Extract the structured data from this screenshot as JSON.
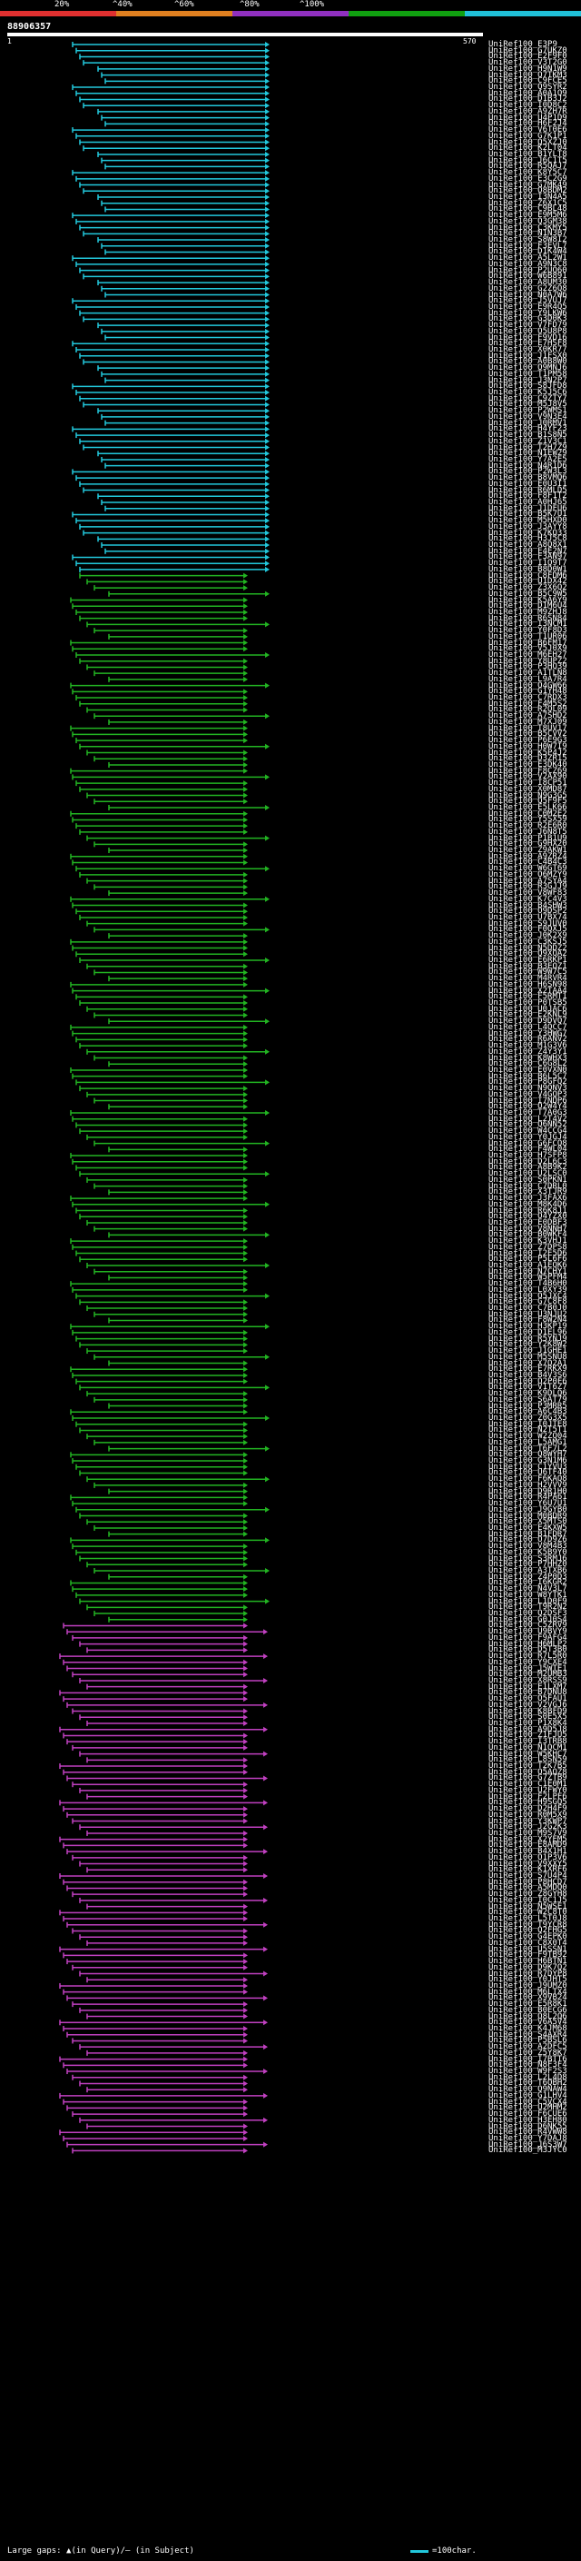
{
  "legend": {
    "labels": [
      "20%",
      "^40%",
      "^60%",
      "^80%",
      "^100%"
    ],
    "colors": [
      "#e03030",
      "#e08020",
      "#9030c0",
      "#10a010",
      "#20c0d8"
    ]
  },
  "query": {
    "id": "88906357",
    "start": "1",
    "end": "570"
  },
  "color_map": {
    "c": "#22c8dc",
    "g": "#22b422",
    "m": "#c040c0"
  },
  "footer": {
    "text": "Large gaps: ▲(in Query)/– (in Subject)",
    "scale_label": "=100char."
  },
  "hit_rows": "c:2:1-E3P9:1-G7UKZ0:1-E2F9F0:1-V3T2G0:1-H9N1W9:1-Q7TKM3:1-C9FCE5:1-Q9SYR2:1-A0A1Q9:1-D1B3J2:1-I0D8C2:1-A9ZH7R:1-U4P1D9:1-H6F2J4:1-V6T0E6:1-G7K1P1:1-Q5XZJ0:1-K2LT04:1-B1YLT8:1-J6C1T5:1-R5QAJ7:1-K8Y5C7:1-E3C2G9:1-G7MK49:1-O8BDM2:1-I3N4A5:1-Z6X1C5:1-C9BL48:1-E9M5M6:1-Q3GM38:1-C3KMY5:1-N1N3B7:1-S8W8I2:1-F3EVL7:1-D1K4W4:1-A5L2W1:1-A9N3C8:1-P2UQ60:1-W6B891:1-A8UM30:1-G2Z6Q8:1-N0A7W6:1-J5VUJ7:1-E9R4Q5:1-Y9LKW6:1-G3D0K3:1-V7FD79:1-O5U8P8:1-F9VD16:1-E7HSF8:1-X0KR77:1-J1FSX0:1-A0B8W0:1-O9MNJ6:1-T1PM58:1-J3N2P7:1-S8JFD8:1-K5J5C6:1-C9ZTY7:1-M5J8V5:1-P2WMS1:1-V9N3E4:1-J0RMV1:1-H4YF23:1-B1S8N5:1-Z1V3C1:1-T2H7Z9:1-N1EW29:1-Y7A2E5:1-N4R1D6:1-P2W3L3:1-B8VMQ6:1-E0U3I1:1-R6MLD5:1-F8F1T2:1-A0HJ65:1-J1DFU6:1-B5K7U1:1-M5HXD0:1-J3AYY8:1-K7KQ33:1-H3J5C8:1-A8Q8X1:1-E4E2N7:1-F3AN97:1-I1Q9T7:1-B8D0W1|g:2:1-C8FDM6:1-U1DX42:1-Z3X6Q2:1-B5C9W5:1-K5A6Y9:1-D1M6U4:1-M9ZHJ8:1-R6SN84:1-I3NCM1:1-Y0F8D3:1-T1UR06:1-B6FM17:1-V5J0X9:1-M6EH27:1-Y8UPZ2:1-P3HQ39:1-A1TLN8:1-L9A7R4:1-O4GW66:1-G1YH48:1-C7RDX3:1-F4M5S2:1-R2QL09:1-A7SHD2:1-M7XJ09:1-T8UV17:1-B5CVV2:1-P6E9G3:1-H0W7I9:1-K5P4J2:1-D3ZR15:1-E3DK40:1-F8CZ69:1-V2AX90:1-I8CP51:1-X0MD87:1-N9G3G5:1-Q5F9F5:1-E5LK66:1-C0M2E2:1-Y5SX59:1-R2E6R0:1-J6N8T5:1-P1B1U9:1-G9HX20:1-Z9AKW1:1-A9ZRZ4:1-C4B4C3:1-W6GT69:1-O6MZY9:1-A7SYA4:1-R3GJJ9:1-V8WF83:1-K7C4V3:1-B4SHW3:1-O9DSP2:1-U7BX74:1-S9JUV0:1-F0QXJ5:1-J0K2X9:1-C3KSJ5:1-N5DDZ2:1-Q9XQA2:1-E6RKP1:1-B3EQZ1:1-W9W7C5:1-M4RVR4:1-H6SN98:1-X2TAA4:1-F5RMT1:1-P0TSB5:1-U0JAC6:1-E2KNL9:1-D9DVQ7:1-L4QCC7:1-Y3HWG7:1-R6ANV2:1-M1G3V6:1-Z4Y3Y1:1-K8WHX3:1-C6G8L2:1-E0VXN0:1-B6L5C7:1-P8GFQ2:1-N9QNV3:1-V4GQP3:1-I7NDP6:1-O2W4Y4:1-T7A0G3:1-L2T4V2:1-Q6NN52:1-W4CCG4:1-Y0JGJ4:1-G6FCQ8:1-F4WL04:1-H7SFP8:1-D2L6C3:1-A8B9K2:1-U2LSC0:1-S0PKN1:1-C7DRL0:1-X3TJR9:1-J3FAX6:1-M8K4D6:1-R6K8J1:1-O4YZX0:1-E0DBF3:1-V8NNH7:1-B0WKF4:1-K3VHJ1:1-Z7DPS8:1-I2E5D6:1-P5L6F6:1-A1EQK6:1-N7CHY1:1-W5PFM4:1-T4B6H0:1-L0XY39:1-Q5JXC4:1-G7C8F8:1-C7B0J0:1-U3NJU2:1-F8W2N4:1-H3KP19:1-D1EL96:1-R5YNJ9:1-Y2K8W2:1-J1GHE1:1-M5SNU8:1-X7Q2A1:1-E7RKX9:1-B4V3S6:1-O2P0F6:1-V1T6Z7:1-K9DLQ6:1-S6AT79:1-P3MRR5:1-A6C4B3:1-Z0G3X5:1-I0JTE8:1-N2T5T1:1-W2ZQ04:1-L5AMG1:1-T6F7L2:1-Q8WYH7:1-G3N1M6:1-C1YVU3:1-U6TF40:1-F6KAQ8:1-H2VVV9:1-D9R1H0:1-R4PA61:1-Y6U7U1:1-J9GYB0:1-M0BDR9:1-X5MTS0:1-E4KXW5:1-B1FDR7:1-O7D9Z6:1-V8M4B3:1-K5B9Y0:1-S3RMJ6:1-P7HHZ0:1-A3TXB6:1-Z4P0D3:1-I6KGR2:1-N4V3L7:1-W8YTK1:1-L1D0F9:1-T9R2N2:1-Q2DSF3:1-G0J0S4|m:2:1-C5ZRV9:1-U9BVY9:1-F9AFG4:1-H6MLP2:1-D5T3B0:1-R7L5R0:1-Y9CXE4:1-J5WTE1:1-M2UMB3:1-X8RSS9:1-E1LXM7:1-B7DNU8:1-O5FAU1:1-V2VGJ6:1-K8BFD9:1-S0E5X5:1-P1X8K4:1-A9D5J8:1-Z1FJU5:1-I3TRB8:1-N1QCM1:1-W5KHC7:1-L8SN59:1-T2K7B5:1-Q5AQZ8:1-G7ZTB9:1-C1E0M1:1-U2FWY0:1-F2LPF6:1-H9SGQ5:1-D2H4F9:1-R0M5X9:1-Y3KWP7:1-J2G2K3:1-M9S7V9:1-X2YEM5:1-E8AMD9:1-B4X1H1:1-O1P3V6:1-V9XXY5:1-K1XRF6:1-S7U4P4:1-P8HCD7:1-A5MDQ0:1-Z8GYH8:1-I0C1J5:1-N5WSE1:1-W2C8T0:1-L5T0J8:1-T9YCR8:1-Q2FHG5:1-G4EPK0:1-C8X0T4:1-U5SSN1:1-F9TB92:1-H6BTN1:1-D9K7Q2:1-R7DYP8:1-Y0JHT5:1-J9UMZ0:1-M6LTX4:1-X9VB24:1-E5R8K1:1-B0ECG6:1-O8L2Q6:1-V6A5V4:1-K4JM68:1-S4AXR4:1-P5BSL6:1-A2DFC5:1-Z5Y8K7:1-I7BTT6:1-N8F3F4:1-W9F2S3:1-L2L4D8:1-T6QBH2:1-Q9NAW4:1-G1LHV4:1-C5VCX4:1-U2MHM2:1-F6CUE6:1-H3EH80:1-D6NK55:1-R4VWW8:1-Y7DAJ8:1-J6S3W7:1-M3JYC0"
}
